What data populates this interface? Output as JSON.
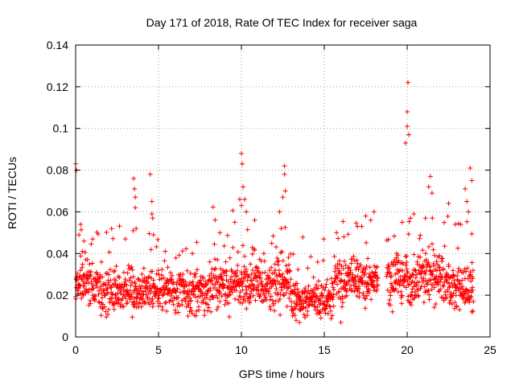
{
  "chart_data": {
    "type": "scatter",
    "title": "Day 171 of 2018, Rate Of TEC Index for receiver saga",
    "xlabel": "GPS time / hours",
    "ylabel": "ROTI / TECUs",
    "xlim": [
      0,
      25
    ],
    "ylim": [
      0,
      0.14
    ],
    "xticks": [
      "0",
      "5",
      "10",
      "15",
      "20",
      "25"
    ],
    "yticks": [
      "0",
      "0.02",
      "0.04",
      "0.06",
      "0.08",
      "0.1",
      "0.12",
      "0.14"
    ],
    "grid": true,
    "marker": "plus",
    "series_color": "#ff0000",
    "points_note": "Dense ROTI samples, mostly 0.005-0.05 TECU/s, gap ~18.3-18.7 h",
    "points": [
      [
        0.0,
        0.083
      ],
      [
        0.05,
        0.08
      ],
      [
        0.2,
        0.049
      ],
      [
        0.3,
        0.054
      ],
      [
        0.4,
        0.041
      ],
      [
        0.5,
        0.046
      ],
      [
        3.0,
        0.047
      ],
      [
        3.5,
        0.076
      ],
      [
        3.55,
        0.071
      ],
      [
        3.6,
        0.067
      ],
      [
        3.6,
        0.062
      ],
      [
        3.65,
        0.052
      ],
      [
        4.5,
        0.078
      ],
      [
        4.6,
        0.065
      ],
      [
        4.6,
        0.059
      ],
      [
        4.65,
        0.057
      ],
      [
        4.7,
        0.049
      ],
      [
        8.7,
        0.05
      ],
      [
        9.6,
        0.055
      ],
      [
        9.9,
        0.066
      ],
      [
        10.0,
        0.063
      ],
      [
        10.0,
        0.088
      ],
      [
        10.05,
        0.083
      ],
      [
        10.1,
        0.072
      ],
      [
        10.2,
        0.066
      ],
      [
        10.3,
        0.06
      ],
      [
        10.8,
        0.056
      ],
      [
        12.3,
        0.06
      ],
      [
        12.4,
        0.052
      ],
      [
        12.5,
        0.067
      ],
      [
        12.6,
        0.078
      ],
      [
        12.6,
        0.082
      ],
      [
        12.65,
        0.07
      ],
      [
        13.3,
        0.008
      ],
      [
        13.5,
        0.007
      ],
      [
        16.0,
        0.007
      ],
      [
        17.0,
        0.053
      ],
      [
        17.5,
        0.058
      ],
      [
        17.8,
        0.056
      ],
      [
        18.0,
        0.06
      ],
      [
        19.7,
        0.055
      ],
      [
        19.9,
        0.093
      ],
      [
        20.0,
        0.101
      ],
      [
        20.0,
        0.108
      ],
      [
        20.05,
        0.122
      ],
      [
        20.1,
        0.097
      ],
      [
        20.2,
        0.057
      ],
      [
        20.4,
        0.059
      ],
      [
        21.1,
        0.057
      ],
      [
        21.3,
        0.072
      ],
      [
        21.4,
        0.077
      ],
      [
        21.5,
        0.069
      ],
      [
        22.5,
        0.064
      ],
      [
        22.9,
        0.054
      ],
      [
        23.5,
        0.071
      ],
      [
        23.6,
        0.065
      ],
      [
        23.7,
        0.06
      ],
      [
        23.8,
        0.081
      ],
      [
        23.9,
        0.075
      ],
      [
        23.9,
        0.012
      ],
      [
        23.95,
        0.028
      ]
    ]
  }
}
